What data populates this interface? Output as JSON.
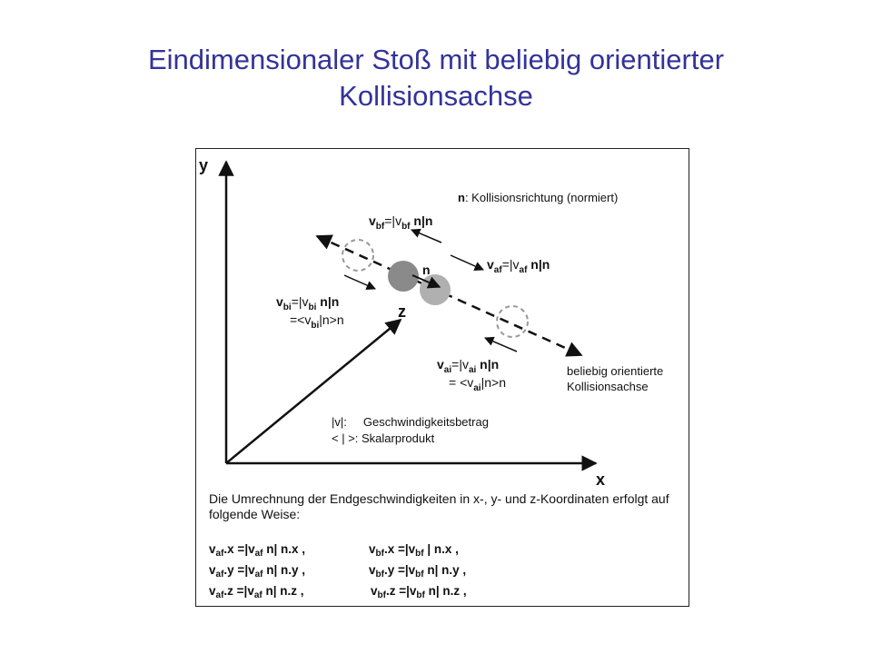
{
  "slide": {
    "title_line1": "Eindimensionaler Stoß mit beliebig orientierter",
    "title_line2": "Kollisionsachse",
    "title_color": "#333399"
  },
  "diagram": {
    "axis_y": "y",
    "axis_x": "x",
    "axis_z": "z",
    "n_label": "n",
    "n_description": ": Kollisionsrichtung (normiert)",
    "axis_caption_line1": "beliebig orientierte",
    "axis_caption_line2": "Kollisionsachse",
    "legend_v": "|v|:     Geschwindigkeitsbetrag",
    "legend_scalar": "< | >: Skalarprodukt",
    "paragraph": "Die Umrechnung der Endgeschwindigkeiten in x-, y- und z-Koordinaten erfolgt  auf folgende Weise:",
    "vectors": {
      "v_bf": {
        "name": "v",
        "sub": "bf",
        "eq": "=|v",
        "sub2": "bf",
        "tail": " n|n"
      },
      "v_af": {
        "name": "v",
        "sub": "af",
        "eq": "=|v",
        "sub2": "af",
        "tail": " n|n"
      },
      "v_bi": {
        "name": "v",
        "sub": "bi",
        "eq": "=|v",
        "sub2": "bi",
        "tail": " n|n",
        "line2": "=<v",
        "sub3": "bi",
        "tail2": "|n>n"
      },
      "v_ai": {
        "name": "v",
        "sub": "ai",
        "eq": "=|v",
        "sub2": "ai",
        "tail": " n|n",
        "line2": "= <v",
        "sub3": "ai",
        "tail2": "|n>n"
      }
    },
    "formulas_left": [
      {
        "sub": "af",
        "comp": ".x =|v",
        "sub2": "af",
        "tail": " n|  n.x ,"
      },
      {
        "sub": "af",
        "comp": ".y =|v",
        "sub2": "af",
        "tail": " n|  n.y ,"
      },
      {
        "sub": "af",
        "comp": ".z =|v",
        "sub2": "af",
        "tail": " n|  n.z ,"
      }
    ],
    "formulas_right": [
      {
        "sub": "bf",
        "comp": ".x =|v",
        "sub2": "bf",
        "tail": " |  n.x ,"
      },
      {
        "sub": "bf",
        "comp": ".y =|v",
        "sub2": "bf",
        "tail": " n|  n.y ,"
      },
      {
        "sub": "bf",
        "comp": ".z =|v",
        "sub2": "bf",
        "tail": " n|  n.z ,"
      }
    ]
  }
}
